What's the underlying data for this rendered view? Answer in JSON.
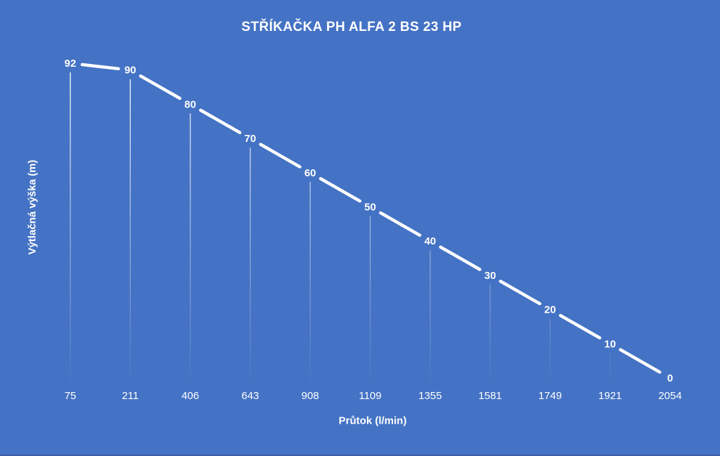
{
  "chart_data": {
    "type": "line",
    "title": "STŘÍKAČKA PH ALFA 2 BS 23 HP",
    "xlabel": "Průtok (l/min)",
    "ylabel": "Výtlačná výška (m)",
    "categories": [
      "75",
      "211",
      "406",
      "643",
      "908",
      "1109",
      "1355",
      "1581",
      "1749",
      "1921",
      "2054"
    ],
    "values": [
      92,
      90,
      80,
      70,
      60,
      50,
      40,
      30,
      20,
      10,
      0
    ],
    "ylim": [
      0,
      92
    ],
    "grid": false,
    "legend": "none",
    "data_label_position": "center",
    "drop_lines": true,
    "colors": {
      "background": "#4472C4",
      "line": "#FFFFFF",
      "text": "#FFFFFF",
      "bottom_edge": "#3A5CA4"
    }
  }
}
